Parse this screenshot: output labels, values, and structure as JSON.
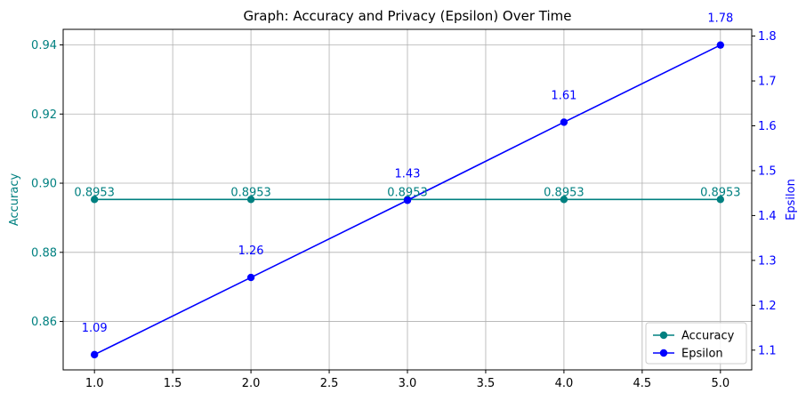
{
  "chart_data": {
    "type": "line",
    "title": "Graph: Accuracy and Privacy (Epsilon) Over Time",
    "xlabel": "",
    "x": [
      1,
      2,
      3,
      4,
      5
    ],
    "xlim": [
      0.8,
      5.2
    ],
    "xticks": [
      1.0,
      1.5,
      2.0,
      2.5,
      3.0,
      3.5,
      4.0,
      4.5,
      5.0
    ],
    "xtick_labels": [
      "1.0",
      "1.5",
      "2.0",
      "2.5",
      "3.0",
      "3.5",
      "4.0",
      "4.5",
      "5.0"
    ],
    "grid": true,
    "legend_position": "bottom-right",
    "series": [
      {
        "name": "Accuracy",
        "axis": "left",
        "color": "#008080",
        "values": [
          0.8953,
          0.8953,
          0.8953,
          0.8953,
          0.8953
        ],
        "point_labels": [
          "0.8953",
          "0.8953",
          "0.8953",
          "0.8953",
          "0.8953"
        ]
      },
      {
        "name": "Epsilon",
        "axis": "right",
        "color": "#0000ff",
        "values": [
          1.09,
          1.262,
          1.434,
          1.608,
          1.78
        ],
        "point_labels": [
          "1.09",
          "1.26",
          "1.43",
          "1.61",
          "1.78"
        ]
      }
    ],
    "y_left": {
      "label": "Accuracy",
      "color": "#008080",
      "ylim": [
        0.846,
        0.9445
      ],
      "ticks": [
        0.86,
        0.88,
        0.9,
        0.92,
        0.94
      ],
      "tick_labels": [
        "0.86",
        "0.88",
        "0.90",
        "0.92",
        "0.94"
      ]
    },
    "y_right": {
      "label": "Epsilon",
      "color": "#0000ff",
      "ylim": [
        1.056,
        1.815
      ],
      "ticks": [
        1.1,
        1.2,
        1.3,
        1.4,
        1.5,
        1.6,
        1.7,
        1.8
      ],
      "tick_labels": [
        "1.1",
        "1.2",
        "1.3",
        "1.4",
        "1.5",
        "1.6",
        "1.7",
        "1.8"
      ]
    }
  }
}
